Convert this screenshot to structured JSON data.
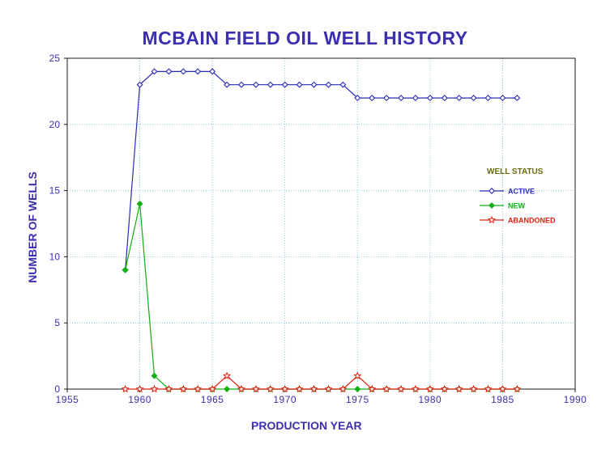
{
  "chart_data": {
    "type": "line",
    "title": "MCBAIN FIELD OIL WELL HISTORY",
    "xlabel": "PRODUCTION YEAR",
    "ylabel": "NUMBER OF WELLS",
    "xlim": [
      1955,
      1990
    ],
    "ylim": [
      0,
      25
    ],
    "x_ticks": [
      1955,
      1960,
      1965,
      1970,
      1975,
      1980,
      1985,
      1990
    ],
    "y_ticks": [
      0,
      5,
      10,
      15,
      20,
      25
    ],
    "grid": true,
    "legend": {
      "title": "WELL STATUS",
      "placement": "right"
    },
    "x": [
      1959,
      1960,
      1961,
      1962,
      1963,
      1964,
      1965,
      1966,
      1967,
      1968,
      1969,
      1970,
      1971,
      1972,
      1973,
      1974,
      1975,
      1976,
      1977,
      1978,
      1979,
      1980,
      1981,
      1982,
      1983,
      1984,
      1985,
      1986
    ],
    "series": [
      {
        "name": "ACTIVE",
        "color": "#2a2ab8",
        "marker": "diamond-open",
        "values": [
          9,
          23,
          24,
          24,
          24,
          24,
          24,
          23,
          23,
          23,
          23,
          23,
          23,
          23,
          23,
          23,
          22,
          22,
          22,
          22,
          22,
          22,
          22,
          22,
          22,
          22,
          22,
          22
        ]
      },
      {
        "name": "NEW",
        "color": "#10b010",
        "marker": "diamond-filled",
        "values": [
          9,
          14,
          1,
          0,
          0,
          0,
          0,
          0,
          0,
          0,
          0,
          0,
          0,
          0,
          0,
          0,
          0,
          0,
          0,
          0,
          0,
          0,
          0,
          0,
          0,
          0,
          0,
          0
        ]
      },
      {
        "name": "ABANDONED",
        "color": "#e02010",
        "marker": "star-open",
        "values": [
          0,
          0,
          0,
          0,
          0,
          0,
          0,
          1,
          0,
          0,
          0,
          0,
          0,
          0,
          0,
          0,
          1,
          0,
          0,
          0,
          0,
          0,
          0,
          0,
          0,
          0,
          0,
          0
        ]
      }
    ]
  }
}
